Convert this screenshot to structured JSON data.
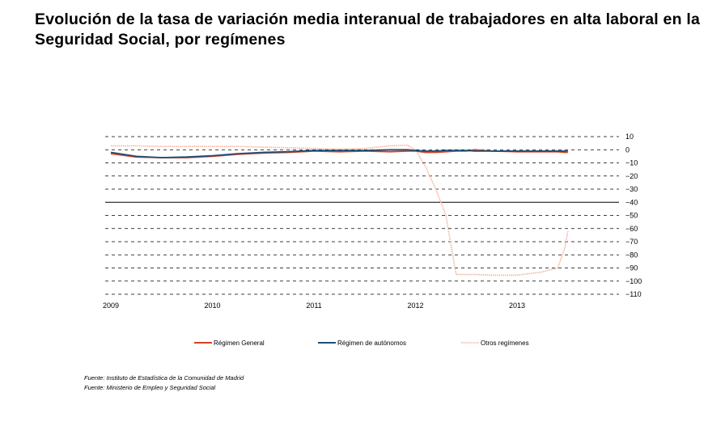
{
  "title": "Evolución de la tasa de variación media interanual de trabajadores en alta laboral en la Seguridad Social, por  regímenes",
  "sources": [
    "Fuente: Instituto de Estadística de la Comunidad de Madrid",
    "Fuente: Ministerio de Empleo y Seguridad Social"
  ],
  "chart_data": {
    "type": "line",
    "title": "Evolución de la tasa de variación media interanual de trabajadores en alta laboral en la Seguridad Social, por  regímenes",
    "xlabel": "",
    "ylabel": "",
    "x_ticks": [
      "2009",
      "2010",
      "2011",
      "2012",
      "2013"
    ],
    "ylim": [
      -110,
      10
    ],
    "y_ticks": [
      10,
      0,
      -10,
      -20,
      -30,
      -40,
      -50,
      -60,
      -70,
      -80,
      -90,
      -100,
      -110
    ],
    "grid": "horizontal dashed",
    "legend": "bottom",
    "x": [
      2009.0,
      2009.25,
      2009.5,
      2009.75,
      2010.0,
      2010.25,
      2010.5,
      2010.75,
      2011.0,
      2011.25,
      2011.5,
      2011.75,
      2011.92,
      2012.0,
      2012.1,
      2012.2,
      2012.3,
      2012.4,
      2012.5,
      2012.58,
      2012.75,
      2013.0,
      2013.25,
      2013.4,
      2013.47,
      2013.5
    ],
    "series": [
      {
        "name": "Régimen General",
        "color": "#d8401f",
        "style": "solid",
        "values": [
          -3,
          -5.5,
          -6,
          -6,
          -5,
          -3.5,
          -2.5,
          -2,
          -1,
          -1.5,
          -1,
          -1.5,
          -1,
          -1,
          -2,
          -2,
          -1.5,
          -1,
          -1,
          0,
          -1,
          -1.5,
          -1.5,
          -1.5,
          -2,
          -2
        ]
      },
      {
        "name": "Régimen de autónomos",
        "color": "#1f4e79",
        "style": "solid",
        "values": [
          -2,
          -5,
          -6,
          -5.5,
          -4.5,
          -3,
          -2,
          -1.5,
          -0.5,
          -0.5,
          -0.5,
          0,
          0,
          -0.5,
          -1,
          -1,
          -0.5,
          -0.5,
          -0.5,
          -1,
          -1,
          -1,
          -1,
          -1,
          -1,
          -1
        ]
      },
      {
        "name": "Otros regímenes",
        "color": "#f4b39c",
        "style": "dotted",
        "values": [
          3,
          3,
          2.5,
          2.5,
          2.5,
          2.5,
          2,
          1.5,
          1,
          0.5,
          1,
          3,
          3.5,
          0,
          -13,
          -30,
          -50,
          -95,
          -95,
          -95,
          -95.5,
          -95.5,
          -93,
          -90,
          -75,
          -62
        ]
      }
    ]
  }
}
